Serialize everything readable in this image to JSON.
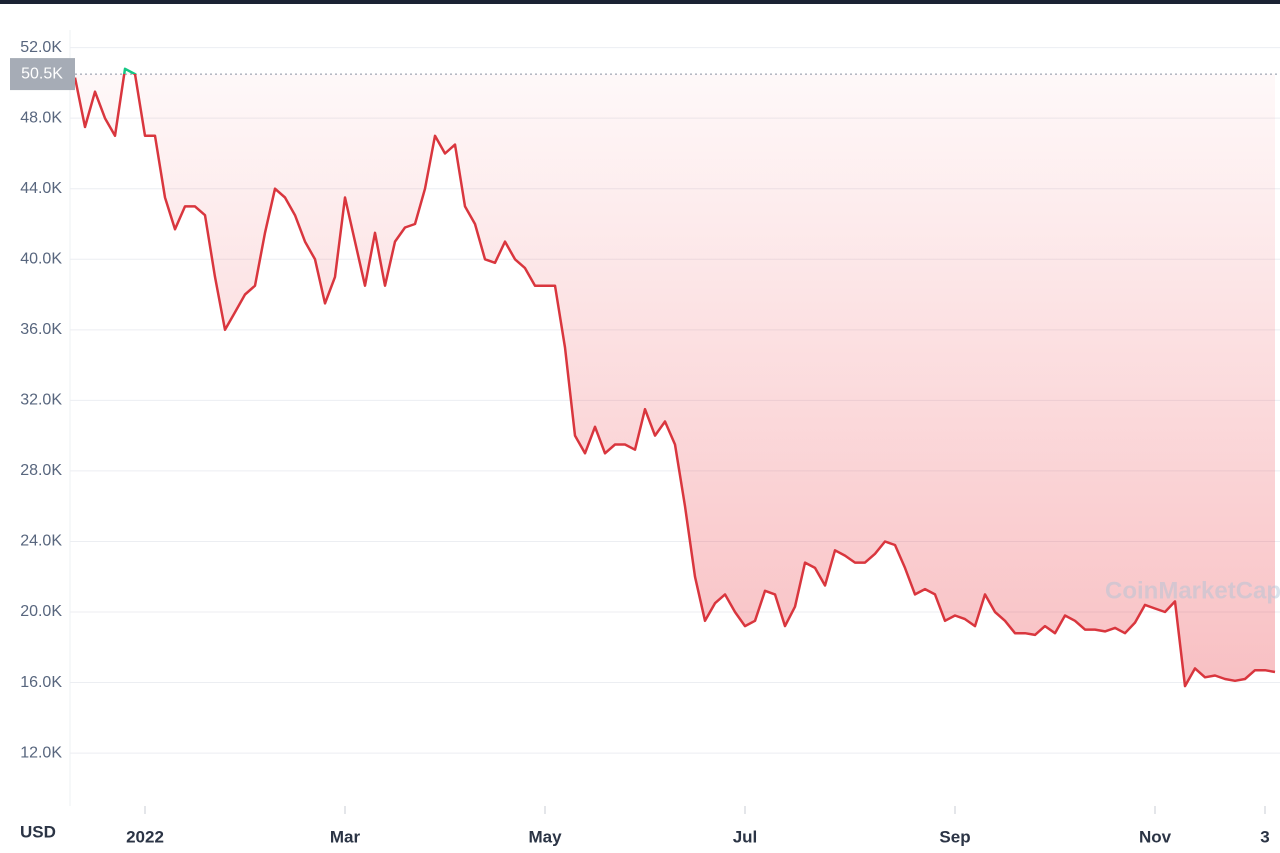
{
  "chart_data": {
    "type": "line",
    "unit_label": "USD",
    "watermark": "CoinMarketCap",
    "color": "#d9363e",
    "above_color": "#16c784",
    "reference": {
      "value": 50.5,
      "label": "50.5K"
    },
    "categories": [
      null,
      null,
      null,
      null,
      null,
      null,
      null,
      "2022",
      null,
      null,
      null,
      null,
      null,
      null,
      null,
      null,
      null,
      null,
      null,
      null,
      null,
      null,
      null,
      null,
      null,
      null,
      null,
      "Mar",
      null,
      null,
      null,
      null,
      null,
      null,
      null,
      null,
      null,
      null,
      null,
      null,
      null,
      null,
      null,
      null,
      null,
      null,
      null,
      "May",
      null,
      null,
      null,
      null,
      null,
      null,
      null,
      null,
      null,
      null,
      null,
      null,
      null,
      null,
      null,
      null,
      null,
      null,
      null,
      "Jul",
      null,
      null,
      null,
      null,
      null,
      null,
      null,
      null,
      null,
      null,
      null,
      null,
      null,
      null,
      null,
      null,
      null,
      null,
      null,
      null,
      "Sep",
      null,
      null,
      null,
      null,
      null,
      null,
      null,
      null,
      null,
      null,
      null,
      null,
      null,
      null,
      null,
      null,
      null,
      null,
      null,
      "Nov",
      null,
      null,
      null,
      null,
      null,
      null,
      null,
      null,
      null,
      null,
      "3",
      null
    ],
    "values": [
      50.3,
      47.5,
      49.5,
      48,
      47,
      50.8,
      50.5,
      47,
      47,
      43.5,
      41.7,
      43,
      43,
      42.5,
      39,
      36,
      37,
      38,
      38.5,
      41.5,
      44,
      43.5,
      42.5,
      41,
      40,
      37.5,
      39,
      43.5,
      41,
      38.5,
      41.5,
      38.5,
      41,
      41.8,
      42,
      44,
      47,
      46,
      46.5,
      43,
      42,
      40,
      39.8,
      41,
      40,
      39.5,
      38.5,
      38.5,
      38.5,
      35,
      30,
      29,
      30.5,
      29,
      29.5,
      29.5,
      29.2,
      31.5,
      30,
      30.8,
      29.5,
      26,
      22,
      19.5,
      20.5,
      21,
      20,
      19.2,
      19.5,
      21.2,
      21,
      19.2,
      20.3,
      22.8,
      22.5,
      21.5,
      23.5,
      23.2,
      22.8,
      22.8,
      23.3,
      24,
      23.8,
      22.5,
      21,
      21.3,
      21,
      19.5,
      19.8,
      19.6,
      19.2,
      21,
      20,
      19.5,
      18.8,
      18.8,
      18.7,
      19.2,
      18.8,
      19.8,
      19.5,
      19,
      19,
      18.9,
      19.1,
      18.8,
      19.4,
      20.4,
      20.2,
      20,
      20.6,
      15.8,
      16.8,
      16.3,
      16.4,
      16.2,
      16.1,
      16.2,
      16.7,
      16.7,
      16.6
    ],
    "ylim": [
      9,
      53
    ],
    "yticks": [
      {
        "value": 12,
        "label": "12.0K"
      },
      {
        "value": 16,
        "label": "16.0K"
      },
      {
        "value": 20,
        "label": "20.0K"
      },
      {
        "value": 24,
        "label": "24.0K"
      },
      {
        "value": 28,
        "label": "28.0K"
      },
      {
        "value": 32,
        "label": "32.0K"
      },
      {
        "value": 36,
        "label": "36.0K"
      },
      {
        "value": 40,
        "label": "40.0K"
      },
      {
        "value": 44,
        "label": "44.0K"
      },
      {
        "value": 48,
        "label": "48.0K"
      },
      {
        "value": 52,
        "label": "52.0K"
      }
    ],
    "grid": true
  }
}
